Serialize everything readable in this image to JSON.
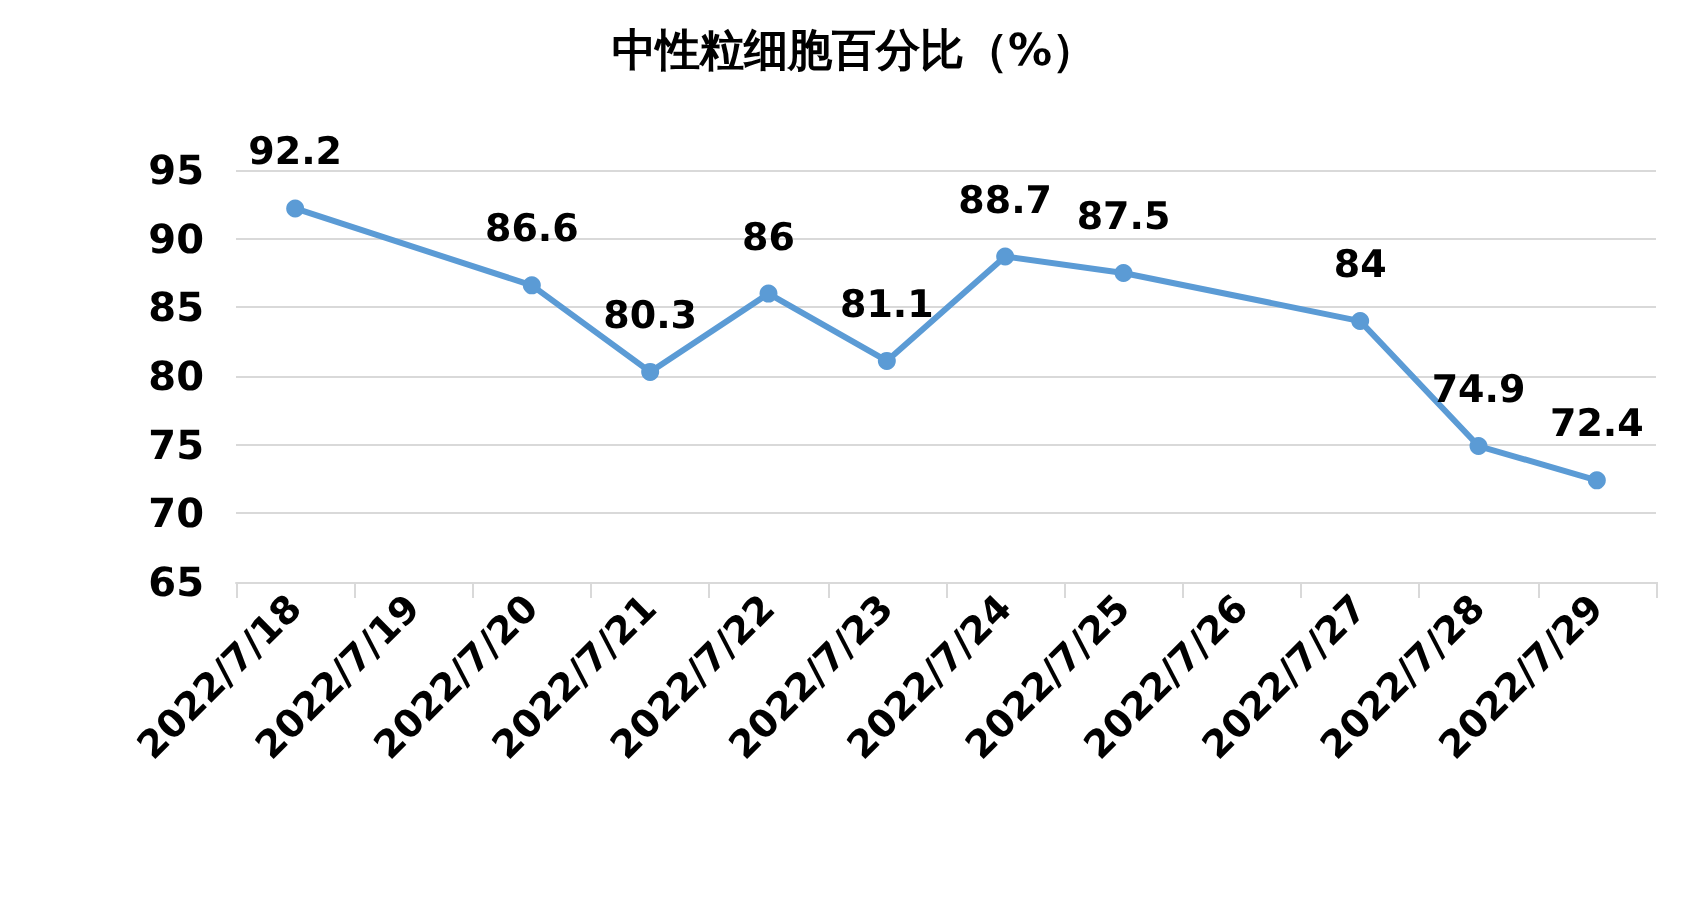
{
  "chart_data": {
    "type": "line",
    "title": "中性粒细胞百分比（%）",
    "categories": [
      "2022/7/18",
      "2022/7/19",
      "2022/7/20",
      "2022/7/21",
      "2022/7/22",
      "2022/7/23",
      "2022/7/24",
      "2022/7/25",
      "2022/7/26",
      "2022/7/27",
      "2022/7/28",
      "2022/7/29"
    ],
    "series": [
      {
        "color": "#5b9bd5",
        "values": [
          92.2,
          null,
          86.6,
          80.3,
          86,
          81.1,
          88.7,
          87.5,
          null,
          84,
          74.9,
          72.4
        ]
      }
    ],
    "ylim": [
      65,
      95
    ],
    "yticks": [
      65,
      70,
      75,
      80,
      85,
      90,
      95
    ],
    "grid": "y",
    "data_labels": true,
    "marker": "circle",
    "line_style": "solid"
  }
}
